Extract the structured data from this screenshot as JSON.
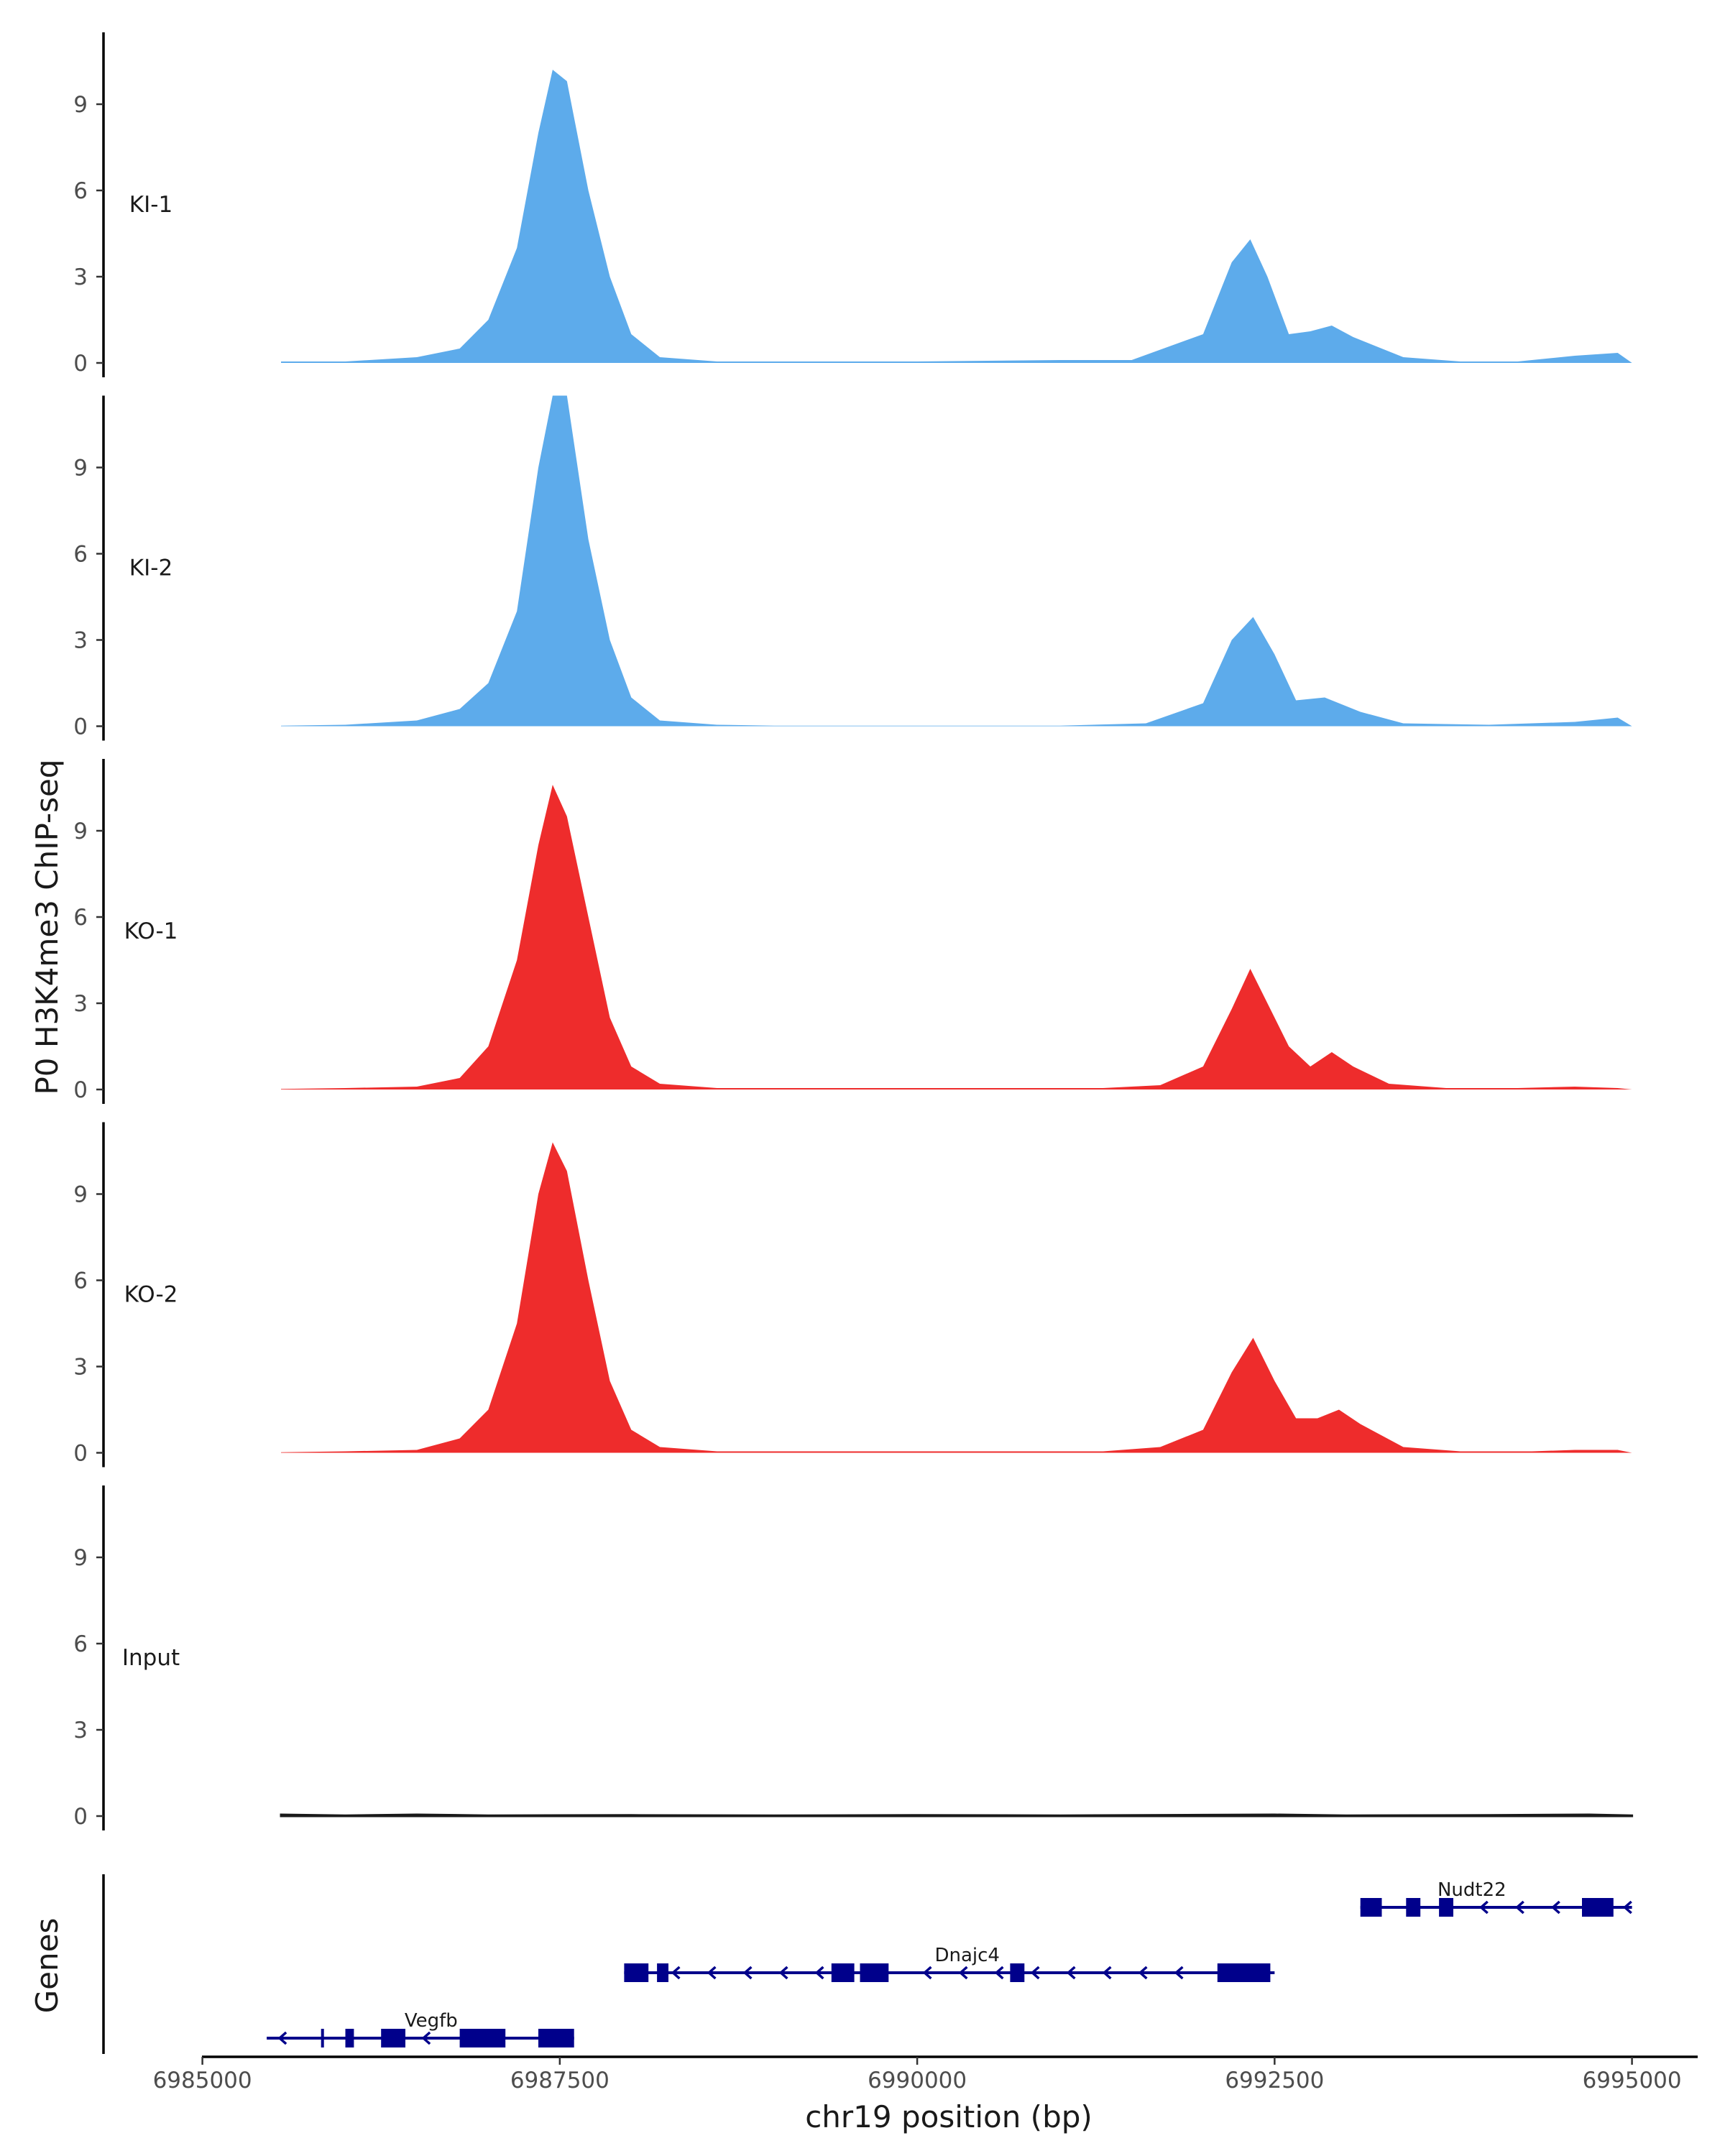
{
  "chart_data": {
    "type": "area",
    "chromosome": "chr19",
    "y_axis_title": "P0 H3K4me3 ChIP-seq",
    "x_axis_title": "chr19 position (bp)",
    "genes_axis_title": "Genes",
    "ylim": [
      0,
      11.5
    ],
    "y_ticks": [
      0,
      3,
      6,
      9
    ],
    "xlim": [
      6985000,
      6995500
    ],
    "x_ticks": [
      6985000,
      6987500,
      6990000,
      6992500,
      6995000
    ],
    "x_tick_labels": [
      "6985000",
      "6987500",
      "6990000",
      "6992500",
      "6995000"
    ],
    "tracks": [
      {
        "name": "KI-1",
        "color": "#5DABEB",
        "points": [
          [
            6985550,
            0.05
          ],
          [
            6986000,
            0.05
          ],
          [
            6986500,
            0.2
          ],
          [
            6986800,
            0.5
          ],
          [
            6987000,
            1.5
          ],
          [
            6987200,
            4
          ],
          [
            6987350,
            8
          ],
          [
            6987450,
            10.2
          ],
          [
            6987550,
            9.8
          ],
          [
            6987700,
            6
          ],
          [
            6987850,
            3
          ],
          [
            6988000,
            1
          ],
          [
            6988200,
            0.2
          ],
          [
            6988600,
            0.05
          ],
          [
            6989000,
            0.05
          ],
          [
            6990000,
            0.05
          ],
          [
            6991000,
            0.1
          ],
          [
            6991500,
            0.1
          ],
          [
            6992000,
            1
          ],
          [
            6992200,
            3.5
          ],
          [
            6992330,
            4.3
          ],
          [
            6992450,
            3
          ],
          [
            6992600,
            1
          ],
          [
            6992750,
            1.1
          ],
          [
            6992900,
            1.3
          ],
          [
            6993050,
            0.9
          ],
          [
            6993400,
            0.2
          ],
          [
            6993800,
            0.05
          ],
          [
            6994200,
            0.05
          ],
          [
            6994600,
            0.25
          ],
          [
            6994900,
            0.35
          ],
          [
            6995000,
            0
          ]
        ]
      },
      {
        "name": "KI-2",
        "color": "#5DABEB",
        "points": [
          [
            6985550,
            0.02
          ],
          [
            6986000,
            0.05
          ],
          [
            6986500,
            0.2
          ],
          [
            6986800,
            0.6
          ],
          [
            6987000,
            1.5
          ],
          [
            6987200,
            4
          ],
          [
            6987350,
            9
          ],
          [
            6987450,
            11.5
          ],
          [
            6987550,
            11.5
          ],
          [
            6987700,
            6.5
          ],
          [
            6987850,
            3
          ],
          [
            6988000,
            1
          ],
          [
            6988200,
            0.2
          ],
          [
            6988600,
            0.05
          ],
          [
            6989000,
            0.02
          ],
          [
            6990000,
            0.02
          ],
          [
            6991000,
            0.02
          ],
          [
            6991600,
            0.1
          ],
          [
            6992000,
            0.8
          ],
          [
            6992200,
            3
          ],
          [
            6992350,
            3.8
          ],
          [
            6992500,
            2.5
          ],
          [
            6992650,
            0.9
          ],
          [
            6992850,
            1
          ],
          [
            6993100,
            0.5
          ],
          [
            6993400,
            0.1
          ],
          [
            6994000,
            0.05
          ],
          [
            6994600,
            0.15
          ],
          [
            6994900,
            0.3
          ],
          [
            6995000,
            0
          ]
        ]
      },
      {
        "name": "KO-1",
        "color": "#EE2C2C",
        "points": [
          [
            6985550,
            0.02
          ],
          [
            6986000,
            0.05
          ],
          [
            6986500,
            0.1
          ],
          [
            6986800,
            0.4
          ],
          [
            6987000,
            1.5
          ],
          [
            6987200,
            4.5
          ],
          [
            6987350,
            8.5
          ],
          [
            6987450,
            10.6
          ],
          [
            6987550,
            9.5
          ],
          [
            6987700,
            6
          ],
          [
            6987850,
            2.5
          ],
          [
            6988000,
            0.8
          ],
          [
            6988200,
            0.2
          ],
          [
            6988600,
            0.05
          ],
          [
            6989500,
            0.05
          ],
          [
            6990500,
            0.05
          ],
          [
            6991300,
            0.05
          ],
          [
            6991700,
            0.15
          ],
          [
            6992000,
            0.8
          ],
          [
            6992200,
            2.8
          ],
          [
            6992330,
            4.2
          ],
          [
            6992450,
            3
          ],
          [
            6992600,
            1.5
          ],
          [
            6992750,
            0.8
          ],
          [
            6992900,
            1.3
          ],
          [
            6993050,
            0.8
          ],
          [
            6993300,
            0.2
          ],
          [
            6993700,
            0.05
          ],
          [
            6994200,
            0.05
          ],
          [
            6994600,
            0.1
          ],
          [
            6994900,
            0.05
          ],
          [
            6995000,
            0
          ]
        ]
      },
      {
        "name": "KO-2",
        "color": "#EE2C2C",
        "points": [
          [
            6985550,
            0.02
          ],
          [
            6986000,
            0.05
          ],
          [
            6986500,
            0.1
          ],
          [
            6986800,
            0.5
          ],
          [
            6987000,
            1.5
          ],
          [
            6987200,
            4.5
          ],
          [
            6987350,
            9
          ],
          [
            6987450,
            10.8
          ],
          [
            6987550,
            9.8
          ],
          [
            6987700,
            6
          ],
          [
            6987850,
            2.5
          ],
          [
            6988000,
            0.8
          ],
          [
            6988200,
            0.2
          ],
          [
            6988600,
            0.05
          ],
          [
            6989500,
            0.05
          ],
          [
            6990500,
            0.05
          ],
          [
            6991300,
            0.05
          ],
          [
            6991700,
            0.2
          ],
          [
            6992000,
            0.8
          ],
          [
            6992200,
            2.8
          ],
          [
            6992350,
            4
          ],
          [
            6992500,
            2.5
          ],
          [
            6992650,
            1.2
          ],
          [
            6992800,
            1.2
          ],
          [
            6992950,
            1.5
          ],
          [
            6993100,
            1
          ],
          [
            6993400,
            0.2
          ],
          [
            6993800,
            0.05
          ],
          [
            6994300,
            0.05
          ],
          [
            6994600,
            0.1
          ],
          [
            6994900,
            0.1
          ],
          [
            6995000,
            0
          ]
        ]
      },
      {
        "name": "Input",
        "color": "#1a1a1a",
        "points": [
          [
            6985550,
            0.05
          ],
          [
            6986000,
            0.02
          ],
          [
            6986500,
            0.05
          ],
          [
            6987000,
            0.02
          ],
          [
            6988000,
            0.03
          ],
          [
            6989000,
            0.02
          ],
          [
            6990000,
            0.03
          ],
          [
            6991000,
            0.02
          ],
          [
            6992000,
            0.04
          ],
          [
            6992500,
            0.05
          ],
          [
            6993000,
            0.02
          ],
          [
            6994000,
            0.03
          ],
          [
            6994700,
            0.05
          ],
          [
            6995000,
            0.02
          ]
        ]
      }
    ],
    "genes": [
      {
        "name": "Nudt22",
        "strand": "-",
        "row": 0,
        "start": 6993100,
        "end": 6995000,
        "label_pos": 6993880,
        "blocks": [
          [
            6993100,
            6993250
          ],
          [
            6993420,
            6993520
          ],
          [
            6993650,
            6993750
          ],
          [
            6994650,
            6994870
          ]
        ]
      },
      {
        "name": "Dnajc4",
        "strand": "-",
        "row": 1,
        "start": 6987950,
        "end": 6992500,
        "label_pos": 6990350,
        "blocks": [
          [
            6987950,
            6988120
          ],
          [
            6988180,
            6988260
          ],
          [
            6989400,
            6989560
          ],
          [
            6989600,
            6989800
          ],
          [
            6990650,
            6990750
          ],
          [
            6992100,
            6992470
          ]
        ]
      },
      {
        "name": "Vegfb",
        "strand": "-",
        "row": 2,
        "start": 6985450,
        "end": 6987600,
        "label_pos": 6986600,
        "blocks": [
          [
            6985830,
            6985850
          ],
          [
            6986000,
            6986060
          ],
          [
            6986250,
            6986420
          ],
          [
            6986800,
            6987120
          ],
          [
            6987350,
            6987600
          ]
        ]
      }
    ],
    "gene_color": "#00008B"
  }
}
